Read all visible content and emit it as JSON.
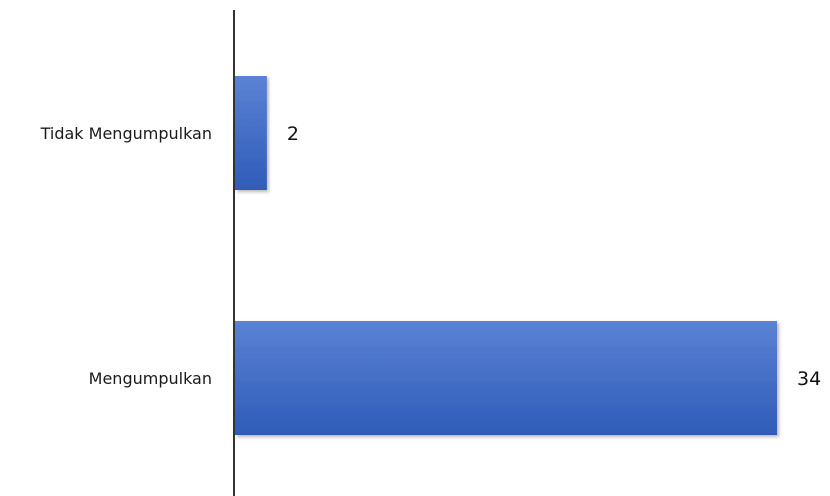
{
  "chart_data": {
    "type": "bar",
    "orientation": "horizontal",
    "categories": [
      "Tidak Mengumpulkan",
      "Mengumpulkan"
    ],
    "values": [
      2,
      34
    ],
    "data_labels": [
      "2",
      "34"
    ],
    "title": "",
    "xlabel": "",
    "ylabel": "",
    "xlim": [
      0,
      34
    ],
    "grid": false,
    "legend": "none",
    "colors": {
      "bar_top": "#5b82d4",
      "bar_bottom": "#2f5cb8",
      "axis": "#000000"
    }
  }
}
